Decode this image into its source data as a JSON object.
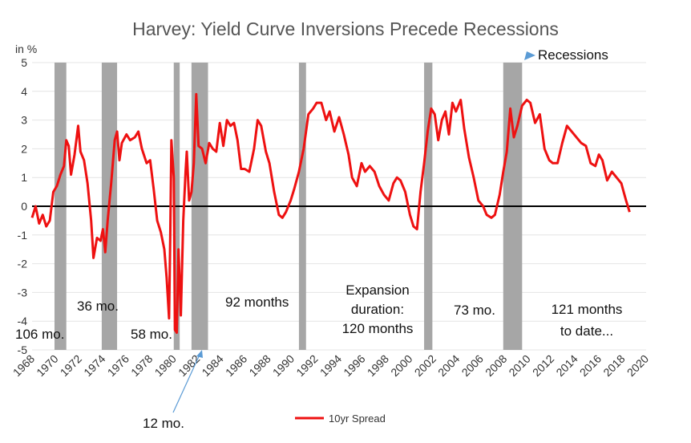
{
  "chart_data": {
    "type": "line",
    "title": "Harvey: Yield Curve Inversions Precede Recessions",
    "ylabel": "in %",
    "xlabel": "",
    "ylim": [
      -5,
      5
    ],
    "xlim": [
      1968,
      2020
    ],
    "y_ticks": [
      "5",
      "4",
      "3",
      "2",
      "1",
      "0",
      "-1",
      "-2",
      "-3",
      "-4",
      "-5"
    ],
    "x_ticks": [
      "1968",
      "1970",
      "1972",
      "1974",
      "1976",
      "1978",
      "1980",
      "1982",
      "1984",
      "1986",
      "1988",
      "1990",
      "1992",
      "1994",
      "1996",
      "1998",
      "2000",
      "2002",
      "2004",
      "2006",
      "2008",
      "2010",
      "2012",
      "2014",
      "2016",
      "2018",
      "2020"
    ],
    "recessions": [
      {
        "start": 1969.9,
        "end": 1970.9
      },
      {
        "start": 1973.9,
        "end": 1975.2
      },
      {
        "start": 1980.0,
        "end": 1980.5
      },
      {
        "start": 1981.5,
        "end": 1982.9
      },
      {
        "start": 1990.6,
        "end": 1991.2
      },
      {
        "start": 2001.2,
        "end": 2001.9
      },
      {
        "start": 2007.9,
        "end": 2009.5
      }
    ],
    "zero_line": 0,
    "series": [
      {
        "name": "10yr Spread",
        "color": "#ee1111",
        "points": [
          [
            1968.0,
            -0.4
          ],
          [
            1968.3,
            0.0
          ],
          [
            1968.6,
            -0.6
          ],
          [
            1968.9,
            -0.3
          ],
          [
            1969.2,
            -0.7
          ],
          [
            1969.5,
            -0.5
          ],
          [
            1969.8,
            0.5
          ],
          [
            1970.1,
            0.7
          ],
          [
            1970.4,
            1.1
          ],
          [
            1970.7,
            1.4
          ],
          [
            1970.9,
            2.3
          ],
          [
            1971.1,
            2.1
          ],
          [
            1971.3,
            1.1
          ],
          [
            1971.6,
            1.8
          ],
          [
            1971.9,
            2.8
          ],
          [
            1972.1,
            1.9
          ],
          [
            1972.4,
            1.6
          ],
          [
            1972.7,
            0.8
          ],
          [
            1973.0,
            -0.5
          ],
          [
            1973.2,
            -1.8
          ],
          [
            1973.5,
            -1.1
          ],
          [
            1973.8,
            -1.2
          ],
          [
            1974.0,
            -0.8
          ],
          [
            1974.2,
            -1.6
          ],
          [
            1974.4,
            -0.5
          ],
          [
            1974.7,
            0.8
          ],
          [
            1975.0,
            2.3
          ],
          [
            1975.2,
            2.6
          ],
          [
            1975.4,
            1.6
          ],
          [
            1975.6,
            2.2
          ],
          [
            1976.0,
            2.5
          ],
          [
            1976.3,
            2.3
          ],
          [
            1976.7,
            2.4
          ],
          [
            1977.0,
            2.6
          ],
          [
            1977.3,
            2.0
          ],
          [
            1977.7,
            1.5
          ],
          [
            1978.0,
            1.6
          ],
          [
            1978.3,
            0.6
          ],
          [
            1978.6,
            -0.5
          ],
          [
            1978.9,
            -0.9
          ],
          [
            1979.2,
            -1.5
          ],
          [
            1979.4,
            -2.5
          ],
          [
            1979.6,
            -3.9
          ],
          [
            1979.7,
            -1.0
          ],
          [
            1979.8,
            2.3
          ],
          [
            1980.0,
            1.0
          ],
          [
            1980.1,
            -4.3
          ],
          [
            1980.25,
            -4.4
          ],
          [
            1980.4,
            -1.5
          ],
          [
            1980.6,
            -3.8
          ],
          [
            1980.8,
            -0.5
          ],
          [
            1981.0,
            1.2
          ],
          [
            1981.1,
            1.9
          ],
          [
            1981.3,
            0.2
          ],
          [
            1981.5,
            0.5
          ],
          [
            1981.7,
            1.5
          ],
          [
            1981.9,
            3.9
          ],
          [
            1982.1,
            2.1
          ],
          [
            1982.4,
            2.0
          ],
          [
            1982.7,
            1.5
          ],
          [
            1983.0,
            2.2
          ],
          [
            1983.3,
            2.0
          ],
          [
            1983.6,
            1.9
          ],
          [
            1983.9,
            2.9
          ],
          [
            1984.2,
            2.1
          ],
          [
            1984.5,
            3.0
          ],
          [
            1984.8,
            2.8
          ],
          [
            1985.1,
            2.9
          ],
          [
            1985.4,
            2.3
          ],
          [
            1985.7,
            1.3
          ],
          [
            1986.0,
            1.3
          ],
          [
            1986.4,
            1.2
          ],
          [
            1986.8,
            2.0
          ],
          [
            1987.1,
            3.0
          ],
          [
            1987.4,
            2.8
          ],
          [
            1987.8,
            1.9
          ],
          [
            1988.1,
            1.5
          ],
          [
            1988.5,
            0.5
          ],
          [
            1988.9,
            -0.3
          ],
          [
            1989.2,
            -0.4
          ],
          [
            1989.5,
            -0.2
          ],
          [
            1989.9,
            0.2
          ],
          [
            1990.2,
            0.6
          ],
          [
            1990.6,
            1.2
          ],
          [
            1991.0,
            2.0
          ],
          [
            1991.4,
            3.2
          ],
          [
            1991.8,
            3.4
          ],
          [
            1992.1,
            3.6
          ],
          [
            1992.5,
            3.6
          ],
          [
            1992.9,
            3.0
          ],
          [
            1993.2,
            3.3
          ],
          [
            1993.6,
            2.6
          ],
          [
            1994.0,
            3.1
          ],
          [
            1994.4,
            2.5
          ],
          [
            1994.8,
            1.8
          ],
          [
            1995.1,
            1.0
          ],
          [
            1995.5,
            0.7
          ],
          [
            1995.9,
            1.5
          ],
          [
            1996.2,
            1.2
          ],
          [
            1996.6,
            1.4
          ],
          [
            1997.0,
            1.2
          ],
          [
            1997.4,
            0.7
          ],
          [
            1997.8,
            0.4
          ],
          [
            1998.2,
            0.2
          ],
          [
            1998.6,
            0.8
          ],
          [
            1998.9,
            1.0
          ],
          [
            1999.2,
            0.9
          ],
          [
            1999.6,
            0.5
          ],
          [
            2000.0,
            -0.3
          ],
          [
            2000.3,
            -0.7
          ],
          [
            2000.6,
            -0.8
          ],
          [
            2000.9,
            0.5
          ],
          [
            2001.2,
            1.5
          ],
          [
            2001.5,
            2.6
          ],
          [
            2001.8,
            3.4
          ],
          [
            2002.1,
            3.2
          ],
          [
            2002.4,
            2.3
          ],
          [
            2002.7,
            3.0
          ],
          [
            2003.0,
            3.3
          ],
          [
            2003.3,
            2.5
          ],
          [
            2003.6,
            3.6
          ],
          [
            2003.9,
            3.3
          ],
          [
            2004.3,
            3.7
          ],
          [
            2004.6,
            2.7
          ],
          [
            2005.0,
            1.7
          ],
          [
            2005.4,
            1.0
          ],
          [
            2005.8,
            0.2
          ],
          [
            2006.2,
            0.0
          ],
          [
            2006.5,
            -0.3
          ],
          [
            2006.9,
            -0.4
          ],
          [
            2007.2,
            -0.3
          ],
          [
            2007.6,
            0.4
          ],
          [
            2007.9,
            1.2
          ],
          [
            2008.2,
            1.9
          ],
          [
            2008.5,
            3.4
          ],
          [
            2008.8,
            2.4
          ],
          [
            2009.1,
            2.8
          ],
          [
            2009.5,
            3.5
          ],
          [
            2009.9,
            3.7
          ],
          [
            2010.2,
            3.6
          ],
          [
            2010.6,
            2.9
          ],
          [
            2011.0,
            3.2
          ],
          [
            2011.4,
            2.0
          ],
          [
            2011.8,
            1.6
          ],
          [
            2012.1,
            1.5
          ],
          [
            2012.5,
            1.5
          ],
          [
            2012.9,
            2.2
          ],
          [
            2013.3,
            2.8
          ],
          [
            2013.7,
            2.6
          ],
          [
            2014.1,
            2.4
          ],
          [
            2014.5,
            2.2
          ],
          [
            2014.9,
            2.1
          ],
          [
            2015.3,
            1.5
          ],
          [
            2015.7,
            1.4
          ],
          [
            2016.0,
            1.8
          ],
          [
            2016.3,
            1.6
          ],
          [
            2016.7,
            0.9
          ],
          [
            2017.1,
            1.2
          ],
          [
            2017.5,
            1.0
          ],
          [
            2017.9,
            0.8
          ],
          [
            2018.1,
            0.5
          ],
          [
            2018.3,
            0.2
          ],
          [
            2018.6,
            -0.2
          ]
        ]
      }
    ],
    "annotations": {
      "recessions_label": "Recessions",
      "ann_106": "106 mo.",
      "ann_36": "36 mo.",
      "ann_58": "58 mo.",
      "ann_12": "12 mo.",
      "ann_92": "92 months",
      "ann_exp1": "Expansion",
      "ann_exp2": "duration:",
      "ann_exp3": "120 months",
      "ann_73": "73 mo.",
      "ann_121a": "121 months",
      "ann_121b": "to date..."
    },
    "legend": {
      "position": "bottom-center",
      "label": "10yr Spread"
    },
    "colors": {
      "recession_bar": "#a6a6a6",
      "zero_line": "#000000",
      "marker": "#5b9bd5"
    }
  }
}
